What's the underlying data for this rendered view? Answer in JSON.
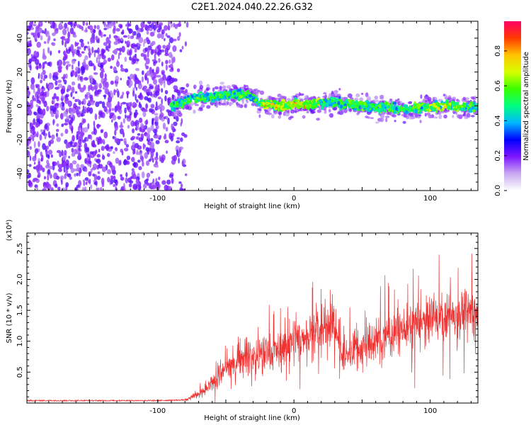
{
  "title": "C2E1.2024.040.22.26.G32",
  "chart_data": [
    {
      "type": "heatmap",
      "xlabel": "Height of straight line (km)",
      "ylabel": "Frequency (Hz)",
      "xlim": [
        -196,
        135
      ],
      "ylim": [
        -50,
        50
      ],
      "xticks": [
        -100,
        0,
        100
      ],
      "yticks": [
        -40,
        -20,
        0,
        20,
        40
      ],
      "colorbar": {
        "label": "Normalized spectral amplitude",
        "range": [
          0,
          0.97
        ],
        "ticks": [
          "0.0",
          "0.2",
          "0.4",
          "0.6",
          "0.8"
        ],
        "colors": [
          "#ffffff",
          "#c8a8f0",
          "#7f16ff",
          "#0000ff",
          "#00b7ff",
          "#00ff7f",
          "#3aff00",
          "#d6ff00",
          "#ffc400",
          "#ff3a00",
          "#ff0066"
        ]
      },
      "ridge_frequency_hz": [
        {
          "x": -90,
          "y": 0
        },
        {
          "x": -75,
          "y": 4
        },
        {
          "x": -55,
          "y": 6
        },
        {
          "x": -40,
          "y": 7
        },
        {
          "x": -32,
          "y": 6
        },
        {
          "x": -25,
          "y": 1
        },
        {
          "x": -10,
          "y": 0
        },
        {
          "x": 0,
          "y": 1
        },
        {
          "x": 15,
          "y": 1
        },
        {
          "x": 30,
          "y": 2
        },
        {
          "x": 50,
          "y": 0
        },
        {
          "x": 80,
          "y": -2
        },
        {
          "x": 110,
          "y": 0
        },
        {
          "x": 135,
          "y": -1
        }
      ],
      "noise_region_x": [
        -196,
        -78
      ]
    },
    {
      "type": "line",
      "xlabel": "Height of straight line (km)",
      "ylabel": "SNR (10 * v/v)",
      "y_multiplier": "(x10⁴)",
      "xlim": [
        -196,
        135
      ],
      "ylim": [
        0,
        2.75
      ],
      "xticks": [
        -100,
        0,
        100
      ],
      "yticks": [
        "0.5",
        "1.0",
        "1.5",
        "2.0",
        "2.5"
      ],
      "color": "#ee3333",
      "envelope": [
        {
          "x": -196,
          "y": 0.04
        },
        {
          "x": -100,
          "y": 0.04
        },
        {
          "x": -80,
          "y": 0.05
        },
        {
          "x": -65,
          "y": 0.2
        },
        {
          "x": -50,
          "y": 0.55
        },
        {
          "x": -40,
          "y": 0.75
        },
        {
          "x": -30,
          "y": 0.75
        },
        {
          "x": -20,
          "y": 0.8
        },
        {
          "x": -10,
          "y": 0.85
        },
        {
          "x": 0,
          "y": 1.0
        },
        {
          "x": 10,
          "y": 1.1
        },
        {
          "x": 20,
          "y": 1.15
        },
        {
          "x": 30,
          "y": 1.3
        },
        {
          "x": 35,
          "y": 0.75
        },
        {
          "x": 45,
          "y": 0.85
        },
        {
          "x": 60,
          "y": 1.0
        },
        {
          "x": 80,
          "y": 1.2
        },
        {
          "x": 100,
          "y": 1.35
        },
        {
          "x": 120,
          "y": 1.45
        },
        {
          "x": 135,
          "y": 1.5
        }
      ]
    }
  ]
}
